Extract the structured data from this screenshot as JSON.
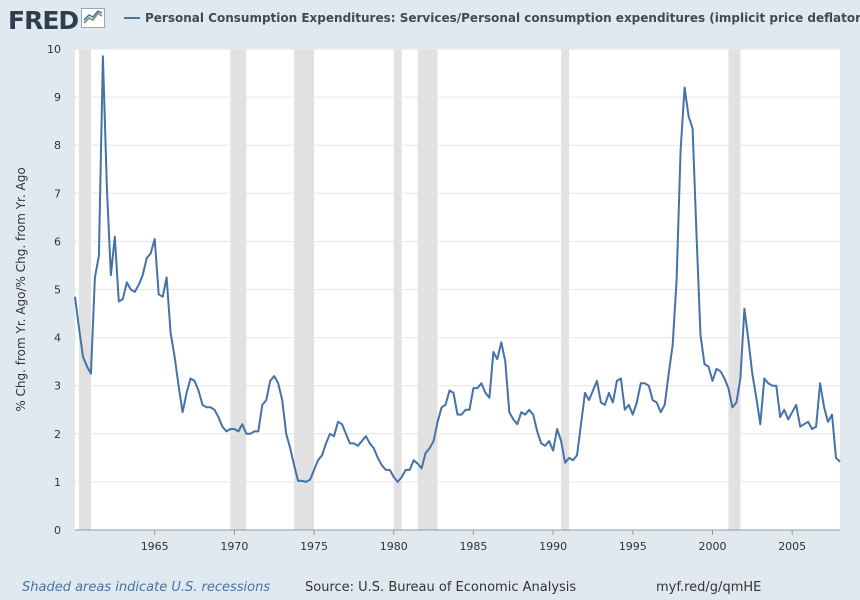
{
  "header": {
    "logo_text": "FRED",
    "logo_icon": "line-chart-icon",
    "legend_label": "Personal Consumption Expenditures: Services/Personal consumption expenditures (implicit price deflator)"
  },
  "footer": {
    "recession_note": "Shaded areas indicate U.S. recessions",
    "source": "Source: U.S. Bureau of Economic Analysis",
    "url": "myf.red/g/qmHE"
  },
  "colors": {
    "line": "#4572a7",
    "recession": "#e1e1e1",
    "background": "#e1e9f0",
    "plot_bg": "#ffffff",
    "grid": "#e6e6e6"
  },
  "chart_data": {
    "type": "line",
    "title": "",
    "xlabel": "",
    "ylabel": "% Chg. from Yr. Ago/% Chg. from Yr. Ago",
    "xlim": [
      1960.0,
      2008.0
    ],
    "ylim": [
      0,
      10
    ],
    "yticks": [
      0,
      1,
      2,
      3,
      4,
      5,
      6,
      7,
      8,
      9,
      10
    ],
    "xticks": [
      1965,
      1970,
      1975,
      1980,
      1985,
      1990,
      1995,
      2000,
      2005
    ],
    "grid": true,
    "legend_position": "top",
    "recessions": [
      [
        1960.25,
        1961.0
      ],
      [
        1969.75,
        1970.75
      ],
      [
        1973.75,
        1975.0
      ],
      [
        1980.0,
        1980.5
      ],
      [
        1981.5,
        1982.75
      ],
      [
        1990.5,
        1991.0
      ],
      [
        2001.0,
        2001.75
      ]
    ],
    "series": [
      {
        "name": "Personal Consumption Expenditures: Services/Personal consumption expenditures (implicit price deflator)",
        "x": [
          1960.0,
          1960.25,
          1960.5,
          1960.75,
          1961.0,
          1961.25,
          1961.5,
          1961.75,
          1962.0,
          1962.25,
          1962.5,
          1962.75,
          1963.0,
          1963.25,
          1963.5,
          1963.75,
          1964.0,
          1964.25,
          1964.5,
          1964.75,
          1965.0,
          1965.25,
          1965.5,
          1965.75,
          1966.0,
          1966.25,
          1966.5,
          1966.75,
          1967.0,
          1967.25,
          1967.5,
          1967.75,
          1968.0,
          1968.25,
          1968.5,
          1968.75,
          1969.0,
          1969.25,
          1969.5,
          1969.75,
          1970.0,
          1970.25,
          1970.5,
          1970.75,
          1971.0,
          1971.25,
          1971.5,
          1971.75,
          1972.0,
          1972.25,
          1972.5,
          1972.75,
          1973.0,
          1973.25,
          1973.5,
          1973.75,
          1974.0,
          1974.25,
          1974.5,
          1974.75,
          1975.0,
          1975.25,
          1975.5,
          1975.75,
          1976.0,
          1976.25,
          1976.5,
          1976.75,
          1977.0,
          1977.25,
          1977.5,
          1977.75,
          1978.0,
          1978.25,
          1978.5,
          1978.75,
          1979.0,
          1979.25,
          1979.5,
          1979.75,
          1980.0,
          1980.25,
          1980.5,
          1980.75,
          1981.0,
          1981.25,
          1981.5,
          1981.75,
          1982.0,
          1982.25,
          1982.5,
          1982.75,
          1983.0,
          1983.25,
          1983.5,
          1983.75,
          1984.0,
          1984.25,
          1984.5,
          1984.75,
          1985.0,
          1985.25,
          1985.5,
          1985.75,
          1986.0,
          1986.25,
          1986.5,
          1986.75,
          1987.0,
          1987.25,
          1987.5,
          1987.75,
          1988.0,
          1988.25,
          1988.5,
          1988.75,
          1989.0,
          1989.25,
          1989.5,
          1989.75,
          1990.0,
          1990.25,
          1990.5,
          1990.75,
          1991.0,
          1991.25,
          1991.5,
          1991.75,
          1992.0,
          1992.25,
          1992.5,
          1992.75,
          1993.0,
          1993.25,
          1993.5,
          1993.75,
          1994.0,
          1994.25,
          1994.5,
          1994.75,
          1995.0,
          1995.25,
          1995.5,
          1995.75,
          1996.0,
          1996.25,
          1996.5,
          1996.75,
          1997.0,
          1997.25,
          1997.5,
          1997.75,
          1998.0,
          1998.25,
          1998.5,
          1998.75,
          1999.0,
          1999.25,
          1999.5,
          1999.75,
          2000.0,
          2000.25,
          2000.5,
          2000.75,
          2001.0,
          2001.25,
          2001.5,
          2001.75,
          2002.0,
          2002.25,
          2002.5,
          2002.75,
          2003.0,
          2003.25,
          2003.5,
          2003.75,
          2004.0,
          2004.25,
          2004.5,
          2004.75,
          2005.0,
          2005.25,
          2005.5,
          2005.75,
          2006.0,
          2006.25,
          2006.5,
          2006.75,
          2007.0,
          2007.25,
          2007.5,
          2007.75,
          2008.0
        ],
        "values": [
          4.85,
          4.2,
          3.6,
          3.4,
          3.25,
          5.25,
          5.7,
          9.85,
          7.1,
          5.3,
          6.1,
          4.75,
          4.8,
          5.15,
          5.0,
          4.95,
          5.1,
          5.3,
          5.65,
          5.75,
          6.05,
          4.9,
          4.85,
          5.25,
          4.1,
          3.6,
          3.0,
          2.45,
          2.85,
          3.15,
          3.1,
          2.9,
          2.6,
          2.55,
          2.55,
          2.5,
          2.35,
          2.15,
          2.05,
          2.1,
          2.1,
          2.05,
          2.2,
          2.0,
          2.0,
          2.05,
          2.05,
          2.6,
          2.7,
          3.1,
          3.2,
          3.05,
          2.7,
          2.0,
          1.7,
          1.35,
          1.02,
          1.02,
          1.0,
          1.05,
          1.25,
          1.45,
          1.55,
          1.8,
          2.0,
          1.95,
          2.25,
          2.2,
          2.0,
          1.8,
          1.8,
          1.75,
          1.85,
          1.95,
          1.8,
          1.7,
          1.5,
          1.35,
          1.25,
          1.25,
          1.1,
          1.0,
          1.1,
          1.25,
          1.25,
          1.45,
          1.38,
          1.28,
          1.6,
          1.7,
          1.85,
          2.25,
          2.55,
          2.6,
          2.9,
          2.85,
          2.4,
          2.4,
          2.5,
          2.5,
          2.95,
          2.95,
          3.05,
          2.85,
          2.75,
          3.7,
          3.55,
          3.9,
          3.5,
          2.45,
          2.3,
          2.2,
          2.45,
          2.4,
          2.5,
          2.4,
          2.05,
          1.8,
          1.75,
          1.85,
          1.65,
          2.1,
          1.85,
          1.4,
          1.5,
          1.45,
          1.55,
          2.2,
          2.85,
          2.7,
          2.9,
          3.1,
          2.65,
          2.6,
          2.85,
          2.65,
          3.1,
          3.15,
          2.5,
          2.6,
          2.4,
          2.65,
          3.05,
          3.05,
          3.0,
          2.7,
          2.65,
          2.45,
          2.6,
          3.25,
          3.85,
          5.2,
          7.9,
          9.2,
          8.6,
          8.35,
          6.1,
          4.05,
          3.45,
          3.4,
          3.1,
          3.35,
          3.3,
          3.15,
          2.95,
          2.55,
          2.65,
          3.15,
          4.6,
          3.95,
          3.25,
          2.75,
          2.2,
          3.15,
          3.05,
          3.0,
          3.0,
          2.35,
          2.5,
          2.3,
          2.45,
          2.6,
          2.15,
          2.2,
          2.25,
          2.1,
          2.15,
          3.05,
          2.55,
          2.25,
          2.4,
          1.5,
          1.42
        ]
      }
    ]
  }
}
